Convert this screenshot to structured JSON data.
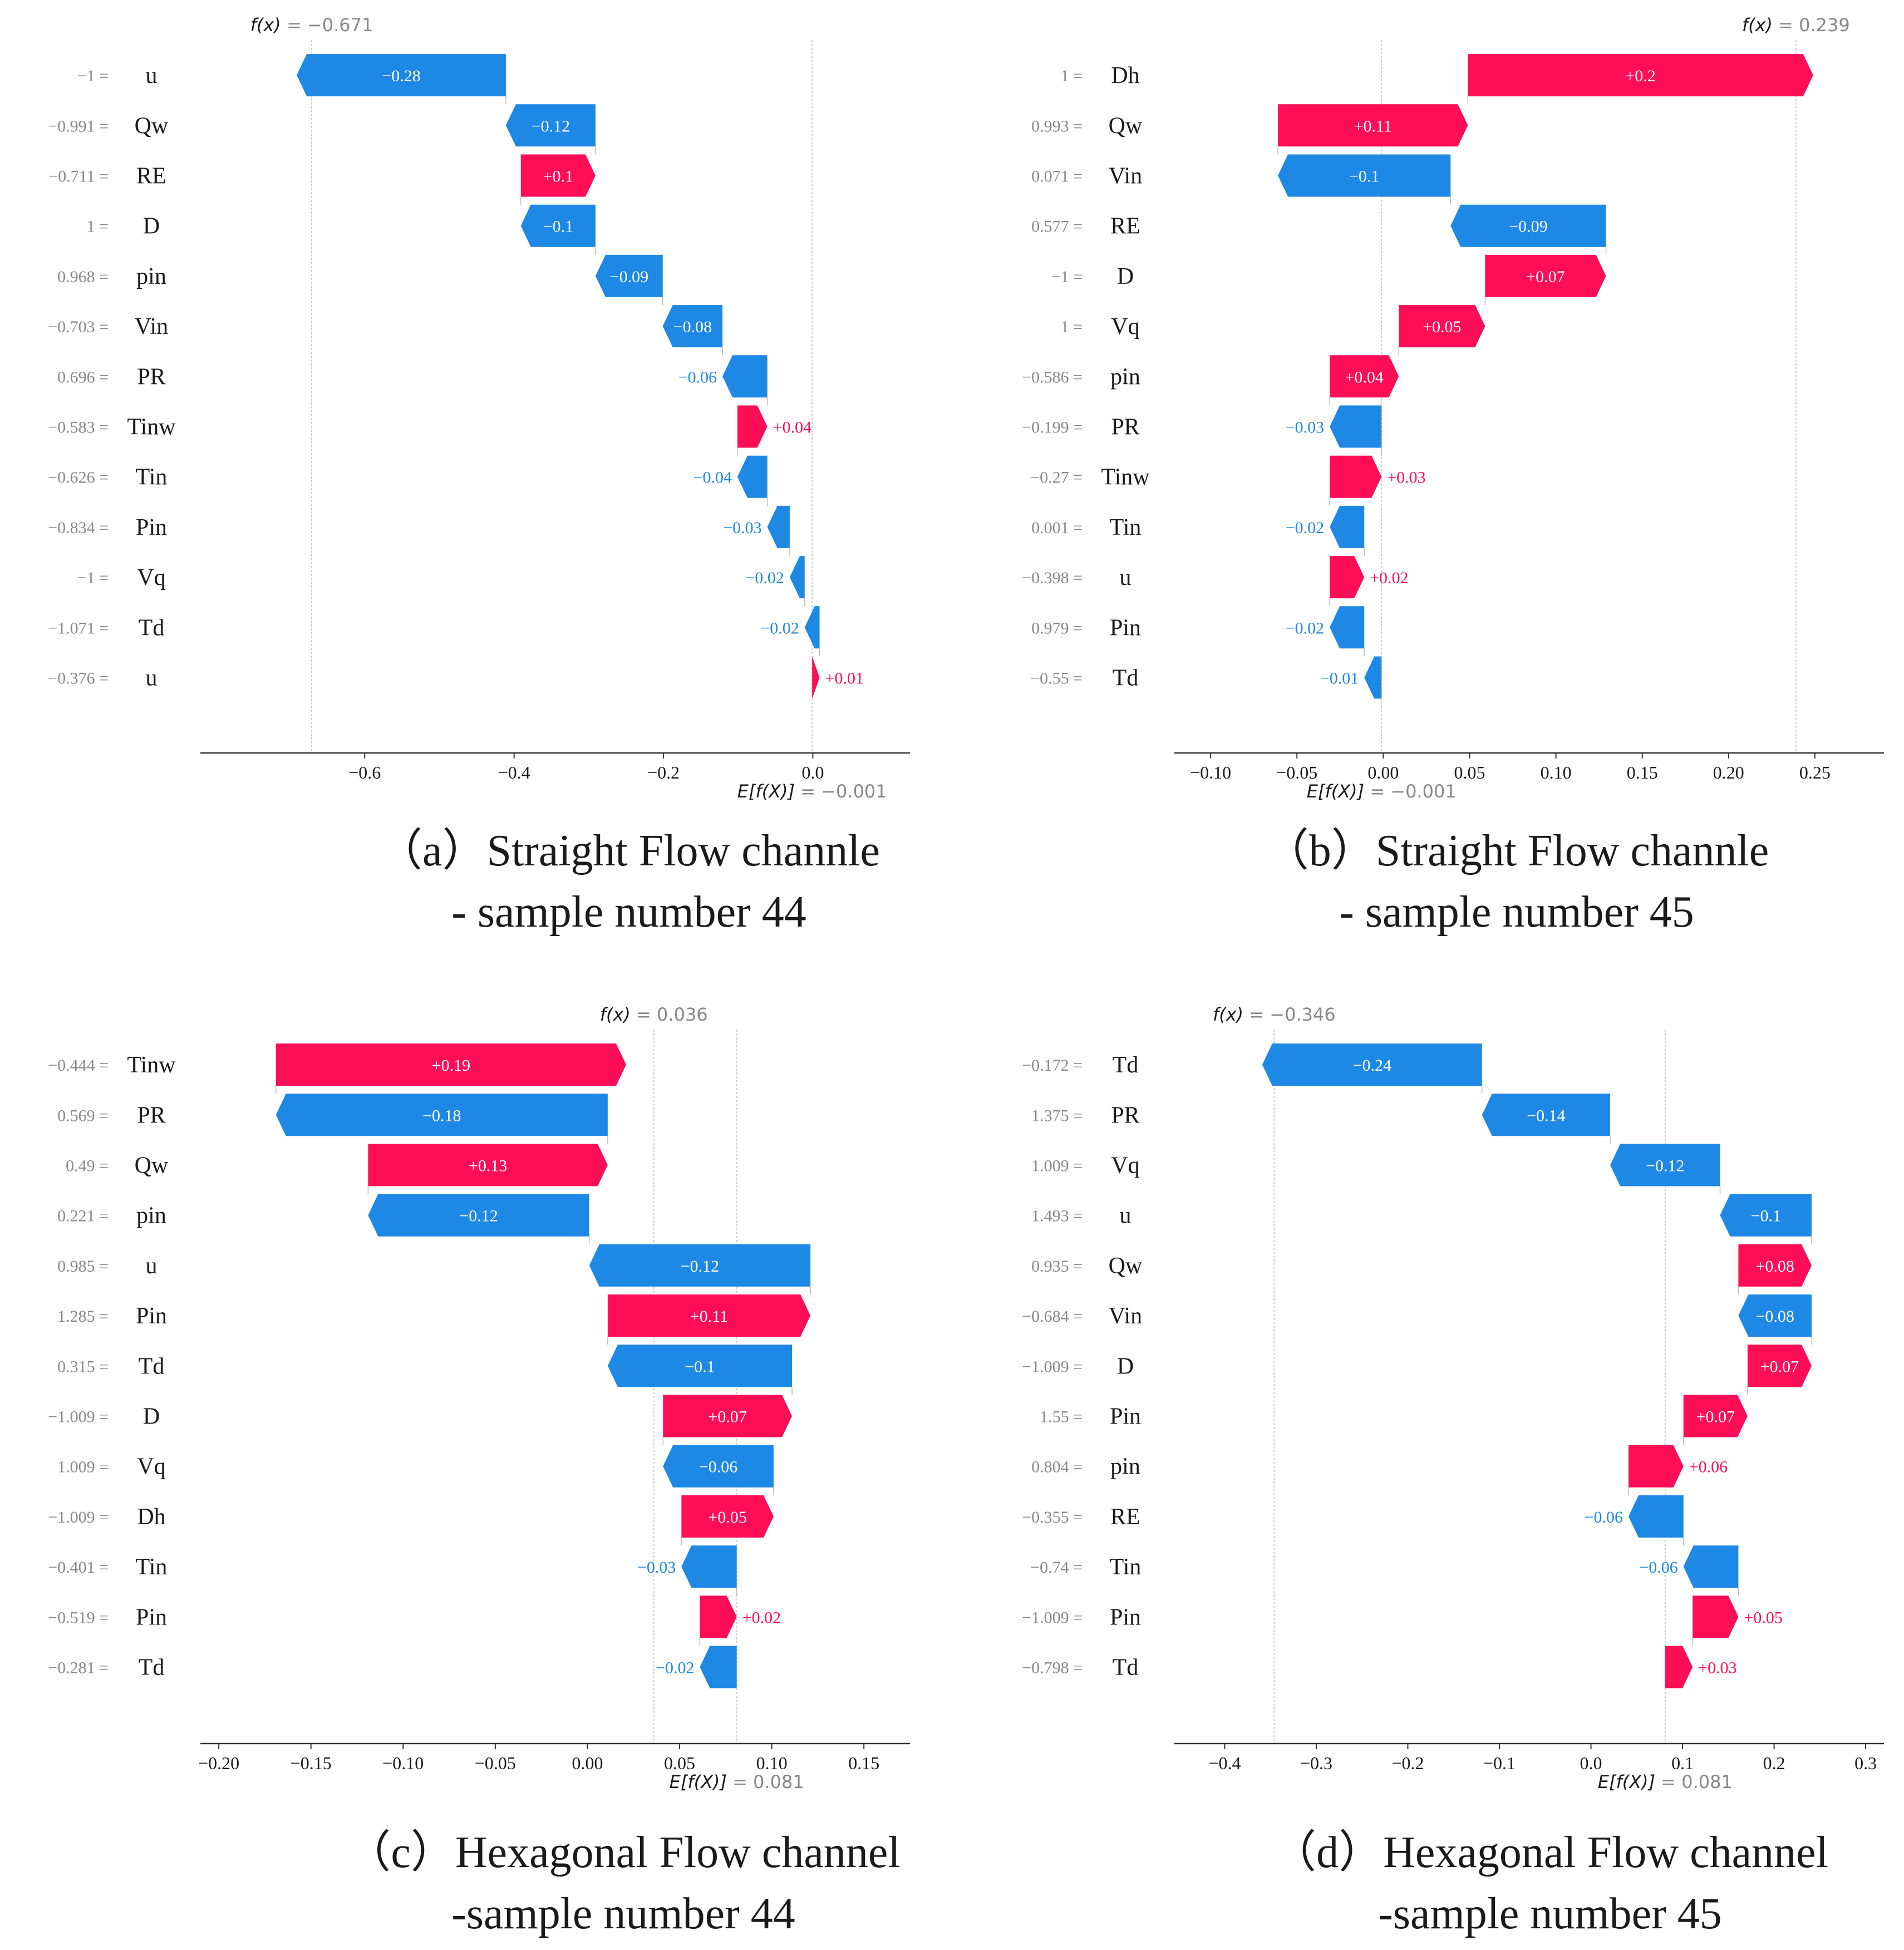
{
  "colors": {
    "positive": "#ff0d57",
    "negative": "#1e88e5",
    "axis": "#333333",
    "muted": "#888888",
    "label": "#1a1a1a"
  },
  "chart_data": [
    {
      "type": "waterfall",
      "panel": "a",
      "caption_line1": "（a）Straight Flow channle",
      "caption_line2": "- sample number 44",
      "fx_text": "= −0.671",
      "ex_text": "= −0.001",
      "fx": -0.671,
      "base": -0.001,
      "xlim": [
        -0.82,
        0.13
      ],
      "ticks": [
        -0.6,
        -0.4,
        -0.2,
        0.0
      ],
      "tick_labels": [
        "−0.6",
        "−0.4",
        "−0.2",
        "0.0"
      ],
      "rows": [
        {
          "feature": "u",
          "value_text": "−1 =",
          "shap": -0.28,
          "label": "−0.28"
        },
        {
          "feature": "Qw",
          "value_text": "−0.991 =",
          "shap": -0.12,
          "label": "−0.12"
        },
        {
          "feature": "RE",
          "value_text": "−0.711 =",
          "shap": 0.1,
          "label": "+0.1"
        },
        {
          "feature": "D",
          "value_text": "1 =",
          "shap": -0.1,
          "label": "−0.1"
        },
        {
          "feature": "pin",
          "value_text": "0.968 =",
          "shap": -0.09,
          "label": "−0.09"
        },
        {
          "feature": "Vin",
          "value_text": "−0.703 =",
          "shap": -0.08,
          "label": "−0.08"
        },
        {
          "feature": "PR",
          "value_text": "0.696 =",
          "shap": -0.06,
          "label": "−0.06"
        },
        {
          "feature": "Tinw",
          "value_text": "−0.583 =",
          "shap": 0.04,
          "label": "+0.04"
        },
        {
          "feature": "Tin",
          "value_text": "−0.626 =",
          "shap": -0.04,
          "label": "−0.04"
        },
        {
          "feature": "Pin",
          "value_text": "−0.834 =",
          "shap": -0.03,
          "label": "−0.03"
        },
        {
          "feature": "Vq",
          "value_text": "−1 =",
          "shap": -0.02,
          "label": "−0.02"
        },
        {
          "feature": "Td",
          "value_text": "−1.071 =",
          "shap": -0.02,
          "label": "−0.02"
        },
        {
          "feature": "u",
          "value_text": "−0.376 =",
          "shap": 0.01,
          "label": "+0.01"
        }
      ]
    },
    {
      "type": "waterfall",
      "panel": "b",
      "caption_line1": "（b）Straight Flow channle",
      "caption_line2": "- sample number 45",
      "fx_text": "= 0.239",
      "ex_text": "= −0.001",
      "fx": 0.239,
      "base": -0.001,
      "xlim": [
        -0.121,
        0.29
      ],
      "ticks": [
        -0.1,
        -0.05,
        0.0,
        0.05,
        0.1,
        0.15,
        0.2,
        0.25
      ],
      "tick_labels": [
        "−0.10",
        "−0.05",
        "0.00",
        "0.05",
        "0.10",
        "0.15",
        "0.20",
        "0.25"
      ],
      "rows": [
        {
          "feature": "Dh",
          "value_text": "1 =",
          "shap": 0.2,
          "label": "+0.2"
        },
        {
          "feature": "Qw",
          "value_text": "0.993 =",
          "shap": 0.11,
          "label": "+0.11"
        },
        {
          "feature": "Vin",
          "value_text": "0.071 =",
          "shap": -0.1,
          "label": "−0.1"
        },
        {
          "feature": "RE",
          "value_text": "0.577 =",
          "shap": -0.09,
          "label": "−0.09"
        },
        {
          "feature": "D",
          "value_text": "−1 =",
          "shap": 0.07,
          "label": "+0.07"
        },
        {
          "feature": "Vq",
          "value_text": "1 =",
          "shap": 0.05,
          "label": "+0.05"
        },
        {
          "feature": "pin",
          "value_text": "−0.586 =",
          "shap": 0.04,
          "label": "+0.04"
        },
        {
          "feature": "PR",
          "value_text": "−0.199 =",
          "shap": -0.03,
          "label": "−0.03"
        },
        {
          "feature": "Tinw",
          "value_text": "−0.27 =",
          "shap": 0.03,
          "label": "+0.03"
        },
        {
          "feature": "Tin",
          "value_text": "0.001 =",
          "shap": -0.02,
          "label": "−0.02"
        },
        {
          "feature": "u",
          "value_text": "−0.398 =",
          "shap": 0.02,
          "label": "+0.02"
        },
        {
          "feature": "Pin",
          "value_text": "0.979 =",
          "shap": -0.02,
          "label": "−0.02"
        },
        {
          "feature": "Td",
          "value_text": "−0.55 =",
          "shap": -0.01,
          "label": "−0.01"
        }
      ]
    },
    {
      "type": "waterfall",
      "panel": "c",
      "caption_line1": "（c）Hexagonal Flow channel",
      "caption_line2": "-sample number 44",
      "fx_text": "= 0.036",
      "ex_text": "= 0.081",
      "fx": 0.036,
      "base": 0.081,
      "xlim": [
        -0.21,
        0.175
      ],
      "ticks": [
        -0.2,
        -0.15,
        -0.1,
        -0.05,
        0.0,
        0.05,
        0.1,
        0.15
      ],
      "tick_labels": [
        "−0.20",
        "−0.15",
        "−0.10",
        "−0.05",
        "0.00",
        "0.05",
        "0.10",
        "0.15"
      ],
      "rows": [
        {
          "feature": "Tinw",
          "value_text": "−0.444 =",
          "shap": 0.19,
          "label": "+0.19"
        },
        {
          "feature": "PR",
          "value_text": "0.569 =",
          "shap": -0.18,
          "label": "−0.18"
        },
        {
          "feature": "Qw",
          "value_text": "0.49 =",
          "shap": 0.13,
          "label": "+0.13"
        },
        {
          "feature": "pin",
          "value_text": "0.221 =",
          "shap": -0.12,
          "label": "−0.12"
        },
        {
          "feature": "u",
          "value_text": "0.985 =",
          "shap": -0.12,
          "label": "−0.12"
        },
        {
          "feature": "Pin",
          "value_text": "1.285 =",
          "shap": 0.11,
          "label": "+0.11"
        },
        {
          "feature": "Td",
          "value_text": "0.315 =",
          "shap": -0.1,
          "label": "−0.1"
        },
        {
          "feature": "D",
          "value_text": "−1.009 =",
          "shap": 0.07,
          "label": "+0.07"
        },
        {
          "feature": "Vq",
          "value_text": "1.009 =",
          "shap": -0.06,
          "label": "−0.06"
        },
        {
          "feature": "Dh",
          "value_text": "−1.009 =",
          "shap": 0.05,
          "label": "+0.05"
        },
        {
          "feature": "Tin",
          "value_text": "−0.401 =",
          "shap": -0.03,
          "label": "−0.03"
        },
        {
          "feature": "Pin",
          "value_text": "−0.519 =",
          "shap": 0.02,
          "label": "+0.02"
        },
        {
          "feature": "Td",
          "value_text": "−0.281 =",
          "shap": -0.02,
          "label": "−0.02"
        }
      ]
    },
    {
      "type": "waterfall",
      "panel": "d",
      "caption_line1": "（d）Hexagonal Flow channel",
      "caption_line2": "-sample number 45",
      "fx_text": "= −0.346",
      "ex_text": "= 0.081",
      "fx": -0.346,
      "base": 0.081,
      "xlim": [
        -0.455,
        0.32
      ],
      "ticks": [
        -0.4,
        -0.3,
        -0.2,
        -0.1,
        0.0,
        0.1,
        0.2,
        0.3
      ],
      "tick_labels": [
        "−0.4",
        "−0.3",
        "−0.2",
        "−0.1",
        "0.0",
        "0.1",
        "0.2",
        "0.3"
      ],
      "rows": [
        {
          "feature": "Td",
          "value_text": "−0.172 =",
          "shap": -0.24,
          "label": "−0.24"
        },
        {
          "feature": "PR",
          "value_text": "1.375 =",
          "shap": -0.14,
          "label": "−0.14"
        },
        {
          "feature": "Vq",
          "value_text": "1.009 =",
          "shap": -0.12,
          "label": "−0.12"
        },
        {
          "feature": "u",
          "value_text": "1.493 =",
          "shap": -0.1,
          "label": "−0.1"
        },
        {
          "feature": "Qw",
          "value_text": "0.935 =",
          "shap": 0.08,
          "label": "+0.08"
        },
        {
          "feature": "Vin",
          "value_text": "−0.684 =",
          "shap": -0.08,
          "label": "−0.08"
        },
        {
          "feature": "D",
          "value_text": "−1.009 =",
          "shap": 0.07,
          "label": "+0.07"
        },
        {
          "feature": "Pin",
          "value_text": "1.55 =",
          "shap": 0.07,
          "label": "+0.07"
        },
        {
          "feature": "pin",
          "value_text": "0.804 =",
          "shap": 0.06,
          "label": "+0.06"
        },
        {
          "feature": "RE",
          "value_text": "−0.355 =",
          "shap": -0.06,
          "label": "−0.06"
        },
        {
          "feature": "Tin",
          "value_text": "−0.74 =",
          "shap": -0.06,
          "label": "−0.06"
        },
        {
          "feature": "Pin",
          "value_text": "−1.009 =",
          "shap": 0.05,
          "label": "+0.05"
        },
        {
          "feature": "Td",
          "value_text": "−0.798 =",
          "shap": 0.03,
          "label": "+0.03"
        }
      ]
    }
  ]
}
